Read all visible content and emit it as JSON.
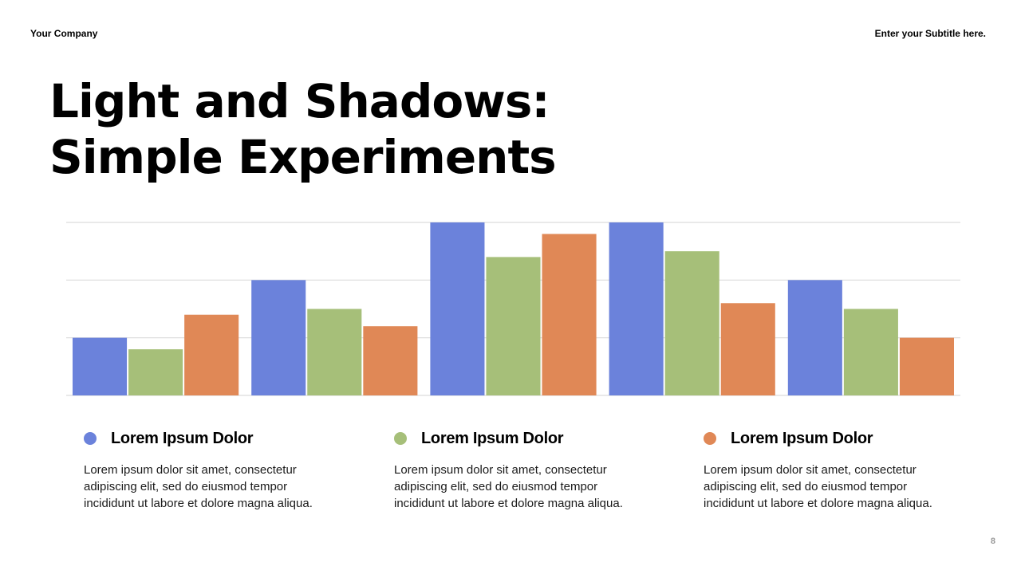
{
  "header": {
    "company": "Your Company",
    "subtitle": "Enter your Subtitle here."
  },
  "title": {
    "line1": "Light and Shadows:",
    "line2": "Simple Experiments"
  },
  "colors": {
    "series1": "#6b82db",
    "series2": "#a6bf79",
    "series3": "#e08856",
    "grid": "#dcdcdc"
  },
  "chart_data": {
    "type": "bar",
    "categories": [
      "",
      "",
      "",
      "",
      ""
    ],
    "series": [
      {
        "name": "Lorem Ipsum Dolor",
        "values": [
          1,
          2,
          3,
          3,
          2
        ]
      },
      {
        "name": "Lorem Ipsum Dolor",
        "values": [
          0.8,
          1.5,
          2.4,
          2.5,
          1.5
        ]
      },
      {
        "name": "Lorem Ipsum Dolor",
        "values": [
          1.4,
          1.2,
          2.8,
          1.6,
          1.0
        ]
      }
    ],
    "ylim": [
      0,
      3
    ],
    "grid": true,
    "title": "",
    "xlabel": "",
    "ylabel": ""
  },
  "legend": [
    {
      "title": "Lorem Ipsum Dolor",
      "desc": "Lorem ipsum dolor sit amet, consectetur adipiscing elit, sed do eiusmod tempor incididunt ut labore et dolore magna aliqua."
    },
    {
      "title": "Lorem Ipsum Dolor",
      "desc": "Lorem ipsum dolor sit amet, consectetur adipiscing elit, sed do eiusmod tempor incididunt ut labore et dolore magna aliqua."
    },
    {
      "title": "Lorem Ipsum Dolor",
      "desc": "Lorem ipsum dolor sit amet, consectetur adipiscing elit, sed do eiusmod tempor incididunt ut labore et dolore magna aliqua."
    }
  ],
  "page_number": "8"
}
